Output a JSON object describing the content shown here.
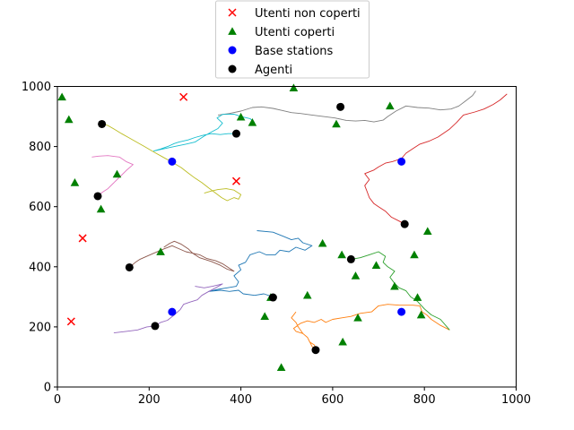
{
  "chart_data": {
    "type": "scatter",
    "xlim": [
      0,
      1000
    ],
    "ylim": [
      0,
      1000
    ],
    "xticks": [
      "0",
      "200",
      "400",
      "600",
      "800",
      "1000"
    ],
    "yticks": [
      "0",
      "200",
      "400",
      "600",
      "800",
      "1000"
    ],
    "grid": false,
    "legend_position": "above plot, centered",
    "legend": [
      {
        "label": "Utenti non coperti",
        "marker": "x",
        "color": "#ff0000"
      },
      {
        "label": "Utenti coperti",
        "marker": "triangle",
        "color": "#008000"
      },
      {
        "label": "Base stations",
        "marker": "circle",
        "color": "#0000ff"
      },
      {
        "label": "Agenti",
        "marker": "circle",
        "color": "#000000"
      }
    ],
    "uncovered_users": [
      [
        275,
        965
      ],
      [
        390,
        685
      ],
      [
        55,
        495
      ],
      [
        30,
        218
      ]
    ],
    "covered_users": [
      [
        10,
        965
      ],
      [
        25,
        890
      ],
      [
        38,
        680
      ],
      [
        95,
        592
      ],
      [
        130,
        708
      ],
      [
        225,
        450
      ],
      [
        400,
        898
      ],
      [
        425,
        880
      ],
      [
        515,
        995
      ],
      [
        608,
        875
      ],
      [
        725,
        935
      ],
      [
        578,
        478
      ],
      [
        620,
        440
      ],
      [
        650,
        370
      ],
      [
        695,
        405
      ],
      [
        735,
        335
      ],
      [
        778,
        440
      ],
      [
        807,
        518
      ],
      [
        785,
        298
      ],
      [
        793,
        240
      ],
      [
        655,
        230
      ],
      [
        545,
        305
      ],
      [
        465,
        298
      ],
      [
        452,
        235
      ],
      [
        488,
        65
      ],
      [
        622,
        150
      ]
    ],
    "base_stations": [
      [
        250,
        750
      ],
      [
        750,
        750
      ],
      [
        250,
        250
      ],
      [
        750,
        250
      ]
    ],
    "agents": [
      [
        97,
        875
      ],
      [
        88,
        635
      ],
      [
        390,
        843
      ],
      [
        617,
        932
      ],
      [
        757,
        542
      ],
      [
        157,
        398
      ],
      [
        640,
        425
      ],
      [
        470,
        298
      ],
      [
        213,
        203
      ],
      [
        563,
        123
      ]
    ],
    "trajectories": [
      {
        "color": "#1f77b4",
        "points": [
          [
            435,
            520
          ],
          [
            470,
            515
          ],
          [
            495,
            500
          ],
          [
            510,
            490
          ],
          [
            525,
            495
          ],
          [
            535,
            480
          ],
          [
            555,
            470
          ],
          [
            540,
            455
          ],
          [
            520,
            465
          ],
          [
            505,
            450
          ],
          [
            485,
            455
          ],
          [
            475,
            440
          ],
          [
            455,
            440
          ],
          [
            440,
            450
          ],
          [
            420,
            440
          ],
          [
            410,
            415
          ],
          [
            395,
            405
          ],
          [
            400,
            390
          ],
          [
            385,
            370
          ],
          [
            395,
            350
          ],
          [
            390,
            335
          ],
          [
            370,
            330
          ],
          [
            350,
            325
          ],
          [
            330,
            318
          ],
          [
            355,
            322
          ],
          [
            375,
            318
          ],
          [
            395,
            322
          ],
          [
            405,
            310
          ],
          [
            430,
            305
          ],
          [
            450,
            310
          ],
          [
            470,
            300
          ]
        ]
      },
      {
        "color": "#ff7f0e",
        "points": [
          [
            855,
            190
          ],
          [
            835,
            205
          ],
          [
            815,
            225
          ],
          [
            805,
            240
          ],
          [
            795,
            250
          ],
          [
            790,
            270
          ],
          [
            775,
            272
          ],
          [
            745,
            272
          ],
          [
            720,
            275
          ],
          [
            700,
            270
          ],
          [
            685,
            250
          ],
          [
            660,
            245
          ],
          [
            640,
            235
          ],
          [
            620,
            230
          ],
          [
            600,
            225
          ],
          [
            585,
            215
          ],
          [
            575,
            225
          ],
          [
            560,
            215
          ],
          [
            545,
            220
          ],
          [
            530,
            212
          ],
          [
            515,
            195
          ],
          [
            520,
            185
          ],
          [
            535,
            178
          ],
          [
            545,
            165
          ],
          [
            550,
            150
          ],
          [
            560,
            140
          ],
          [
            565,
            123
          ],
          [
            555,
            135
          ],
          [
            545,
            165
          ],
          [
            535,
            178
          ],
          [
            525,
            200
          ],
          [
            520,
            215
          ],
          [
            510,
            230
          ],
          [
            520,
            250
          ]
        ]
      },
      {
        "color": "#2ca02c",
        "points": [
          [
            640,
            425
          ],
          [
            660,
            430
          ],
          [
            680,
            440
          ],
          [
            700,
            450
          ],
          [
            715,
            435
          ],
          [
            710,
            415
          ],
          [
            720,
            400
          ],
          [
            735,
            385
          ],
          [
            725,
            365
          ],
          [
            735,
            345
          ],
          [
            745,
            330
          ],
          [
            760,
            320
          ],
          [
            770,
            300
          ],
          [
            785,
            285
          ],
          [
            800,
            260
          ],
          [
            815,
            240
          ],
          [
            835,
            225
          ],
          [
            855,
            190
          ]
        ]
      },
      {
        "color": "#d62728",
        "points": [
          [
            757,
            542
          ],
          [
            745,
            552
          ],
          [
            728,
            565
          ],
          [
            715,
            585
          ],
          [
            700,
            600
          ],
          [
            690,
            610
          ],
          [
            680,
            630
          ],
          [
            675,
            650
          ],
          [
            670,
            670
          ],
          [
            680,
            690
          ],
          [
            670,
            710
          ],
          [
            690,
            722
          ],
          [
            700,
            732
          ],
          [
            715,
            745
          ],
          [
            730,
            750
          ],
          [
            750,
            760
          ],
          [
            760,
            778
          ],
          [
            775,
            793
          ],
          [
            790,
            808
          ],
          [
            810,
            818
          ],
          [
            830,
            832
          ],
          [
            855,
            858
          ],
          [
            870,
            880
          ],
          [
            885,
            905
          ],
          [
            910,
            915
          ],
          [
            930,
            925
          ],
          [
            950,
            940
          ],
          [
            965,
            955
          ],
          [
            980,
            975
          ]
        ]
      },
      {
        "color": "#9467bd",
        "points": [
          [
            123,
            180
          ],
          [
            150,
            185
          ],
          [
            175,
            190
          ],
          [
            195,
            200
          ],
          [
            213,
            203
          ],
          [
            225,
            215
          ],
          [
            240,
            222
          ],
          [
            255,
            240
          ],
          [
            268,
            258
          ],
          [
            275,
            275
          ],
          [
            290,
            283
          ],
          [
            305,
            290
          ],
          [
            315,
            305
          ],
          [
            330,
            318
          ],
          [
            345,
            330
          ],
          [
            360,
            343
          ],
          [
            338,
            335
          ],
          [
            320,
            330
          ],
          [
            300,
            335
          ]
        ]
      },
      {
        "color": "#8c564b",
        "points": [
          [
            157,
            398
          ],
          [
            170,
            415
          ],
          [
            180,
            425
          ],
          [
            195,
            435
          ],
          [
            210,
            445
          ],
          [
            230,
            458
          ],
          [
            250,
            470
          ],
          [
            262,
            462
          ],
          [
            280,
            450
          ],
          [
            295,
            445
          ],
          [
            310,
            440
          ],
          [
            325,
            428
          ],
          [
            345,
            420
          ],
          [
            360,
            410
          ],
          [
            370,
            400
          ],
          [
            385,
            385
          ],
          [
            370,
            392
          ],
          [
            355,
            405
          ],
          [
            335,
            418
          ],
          [
            310,
            430
          ],
          [
            295,
            445
          ],
          [
            285,
            460
          ],
          [
            270,
            475
          ],
          [
            255,
            485
          ],
          [
            245,
            478
          ],
          [
            232,
            465
          ]
        ]
      },
      {
        "color": "#e377c2",
        "points": [
          [
            88,
            635
          ],
          [
            98,
            648
          ],
          [
            110,
            660
          ],
          [
            120,
            675
          ],
          [
            130,
            690
          ],
          [
            140,
            705
          ],
          [
            150,
            720
          ],
          [
            165,
            740
          ],
          [
            150,
            750
          ],
          [
            135,
            765
          ],
          [
            110,
            770
          ],
          [
            90,
            768
          ],
          [
            75,
            765
          ]
        ]
      },
      {
        "color": "#7f7f7f",
        "points": [
          [
            350,
            905
          ],
          [
            375,
            910
          ],
          [
            400,
            918
          ],
          [
            425,
            930
          ],
          [
            445,
            932
          ],
          [
            470,
            927
          ],
          [
            490,
            920
          ],
          [
            510,
            913
          ],
          [
            530,
            910
          ],
          [
            555,
            905
          ],
          [
            580,
            900
          ],
          [
            605,
            895
          ],
          [
            630,
            887
          ],
          [
            650,
            885
          ],
          [
            670,
            887
          ],
          [
            690,
            882
          ],
          [
            710,
            888
          ],
          [
            720,
            900
          ],
          [
            738,
            918
          ],
          [
            760,
            935
          ],
          [
            785,
            930
          ],
          [
            810,
            928
          ],
          [
            835,
            922
          ],
          [
            858,
            925
          ],
          [
            875,
            935
          ],
          [
            890,
            952
          ],
          [
            905,
            970
          ],
          [
            912,
            985
          ]
        ]
      },
      {
        "color": "#bcbd22",
        "points": [
          [
            97,
            875
          ],
          [
            110,
            870
          ],
          [
            125,
            857
          ],
          [
            140,
            843
          ],
          [
            155,
            830
          ],
          [
            170,
            817
          ],
          [
            190,
            800
          ],
          [
            210,
            782
          ],
          [
            230,
            765
          ],
          [
            250,
            748
          ],
          [
            270,
            730
          ],
          [
            285,
            712
          ],
          [
            300,
            695
          ],
          [
            315,
            680
          ],
          [
            330,
            662
          ],
          [
            345,
            645
          ],
          [
            358,
            630
          ],
          [
            370,
            620
          ],
          [
            385,
            630
          ],
          [
            395,
            625
          ],
          [
            400,
            640
          ],
          [
            385,
            655
          ],
          [
            368,
            660
          ],
          [
            350,
            657
          ],
          [
            335,
            652
          ],
          [
            320,
            645
          ]
        ]
      },
      {
        "color": "#17becf",
        "points": [
          [
            390,
            843
          ],
          [
            372,
            843
          ],
          [
            355,
            840
          ],
          [
            335,
            843
          ],
          [
            318,
            838
          ],
          [
            300,
            830
          ],
          [
            285,
            822
          ],
          [
            265,
            815
          ],
          [
            255,
            810
          ],
          [
            240,
            800
          ],
          [
            225,
            792
          ],
          [
            210,
            785
          ],
          [
            230,
            792
          ],
          [
            255,
            800
          ],
          [
            280,
            808
          ],
          [
            300,
            815
          ],
          [
            320,
            835
          ],
          [
            335,
            848
          ],
          [
            350,
            860
          ],
          [
            360,
            878
          ],
          [
            348,
            895
          ],
          [
            360,
            907
          ],
          [
            385,
            908
          ],
          [
            400,
            900
          ],
          [
            420,
            893
          ],
          [
            430,
            880
          ]
        ]
      }
    ]
  }
}
